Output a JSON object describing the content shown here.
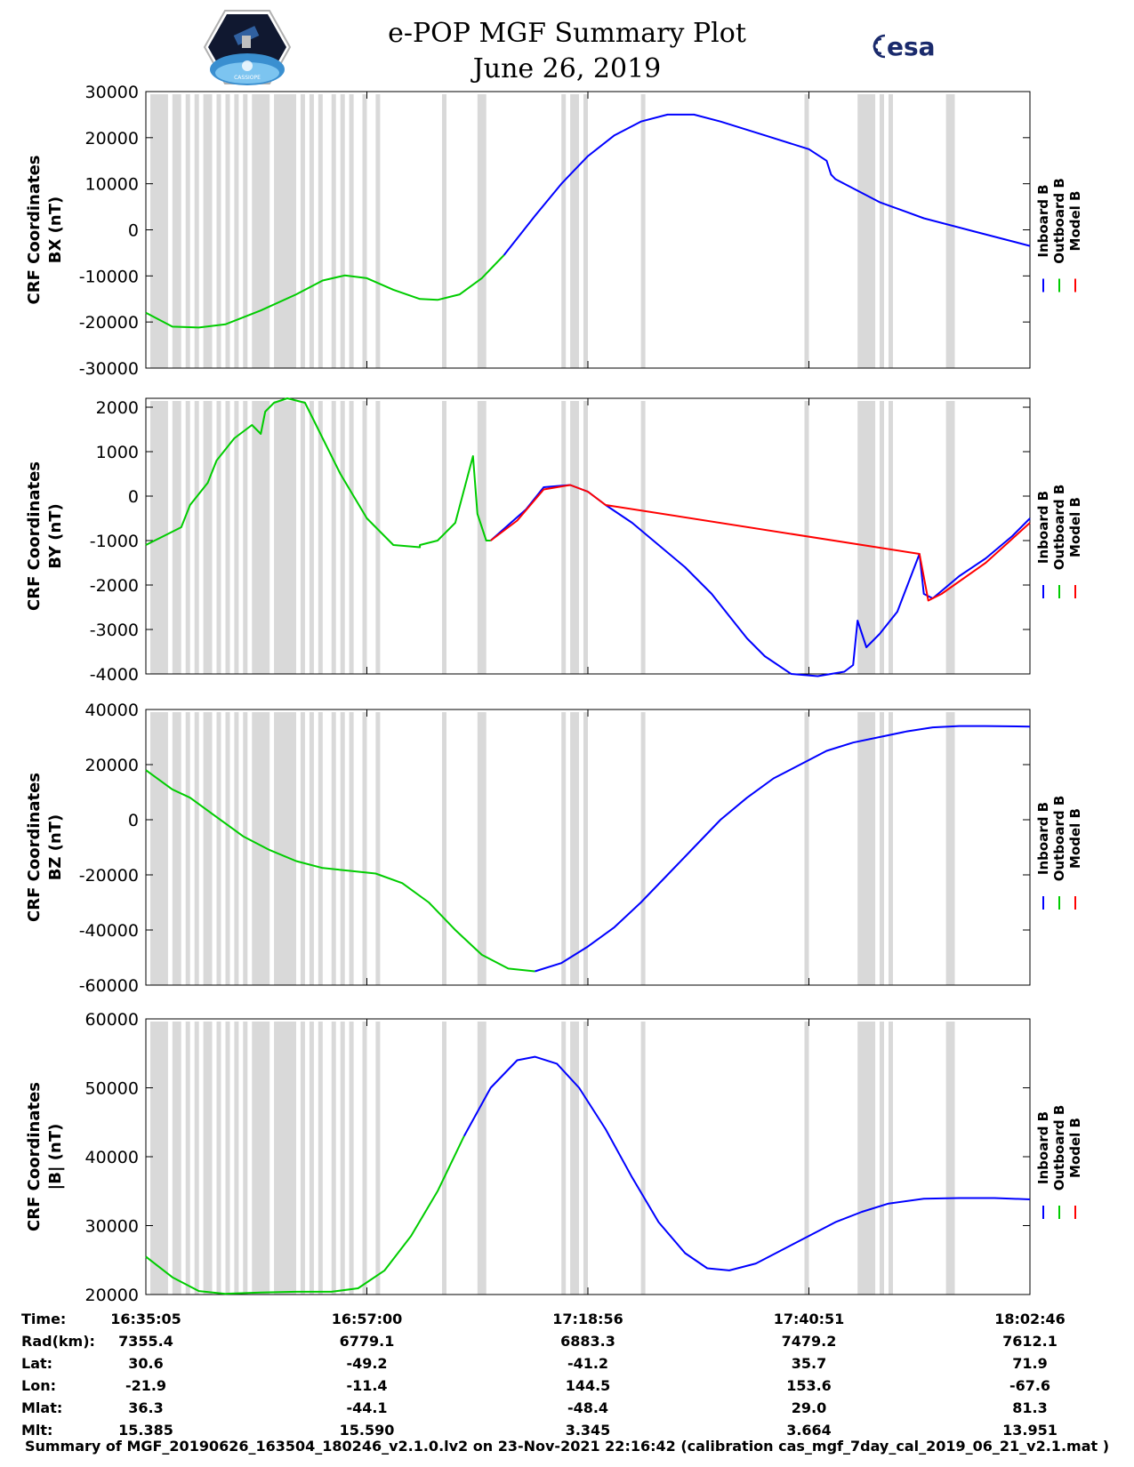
{
  "title_line1": "e-POP MGF Summary Plot",
  "title_line2": "June 26, 2019",
  "logo_esa_text": "esa",
  "logo_cassiope_text": "CASSIOPE",
  "colors": {
    "inboard": "#0000ff",
    "outboard": "#00cc00",
    "model": "#ff0000",
    "gap": "#d9d9d9"
  },
  "legend": [
    "Inboard B",
    "Outboard B",
    "Model B"
  ],
  "chart_data": [
    {
      "type": "line",
      "ylabel_line1": "CRF Coordinates",
      "ylabel_line2": "BX (nT)",
      "ylim": [
        -30000,
        30000
      ],
      "yticks": [
        "30000",
        "20000",
        "10000",
        "0",
        "-10000",
        "-20000",
        "-30000"
      ],
      "ytick_values": [
        30000,
        20000,
        10000,
        0,
        -10000,
        -20000,
        -30000
      ],
      "series": [
        {
          "name": "Outboard B",
          "x": [
            0,
            0.03,
            0.06,
            0.09,
            0.13,
            0.17,
            0.2,
            0.225,
            0.25,
            0.28,
            0.31,
            0.33,
            0.355,
            0.38,
            0.405
          ],
          "y": [
            -18000,
            -21000,
            -21200,
            -20500,
            -17500,
            -14000,
            -11000,
            -9900,
            -10500,
            -13000,
            -15000,
            -15200,
            -14000,
            -10500,
            -5500
          ]
        },
        {
          "name": "Inboard B",
          "x": [
            0.405,
            0.44,
            0.47,
            0.5,
            0.53,
            0.56,
            0.59,
            0.62,
            0.65,
            0.7,
            0.75,
            0.77,
            0.775,
            0.78,
            0.83,
            0.88,
            0.94,
            1.0
          ],
          "y": [
            -5500,
            3000,
            10000,
            16000,
            20500,
            23500,
            25000,
            25000,
            23500,
            20500,
            17500,
            15000,
            12000,
            11000,
            6000,
            2500,
            -500,
            -3500
          ]
        }
      ],
      "gap_bands": [
        [
          0.005,
          0.025
        ],
        [
          0.03,
          0.04
        ],
        [
          0.045,
          0.05
        ],
        [
          0.055,
          0.06
        ],
        [
          0.065,
          0.075
        ],
        [
          0.08,
          0.085
        ],
        [
          0.09,
          0.095
        ],
        [
          0.1,
          0.105
        ],
        [
          0.11,
          0.115
        ],
        [
          0.12,
          0.14
        ],
        [
          0.145,
          0.17
        ],
        [
          0.175,
          0.18
        ],
        [
          0.185,
          0.19
        ],
        [
          0.195,
          0.2
        ],
        [
          0.21,
          0.215
        ],
        [
          0.22,
          0.225
        ],
        [
          0.23,
          0.235
        ],
        [
          0.245,
          0.25
        ],
        [
          0.26,
          0.265
        ],
        [
          0.335,
          0.34
        ],
        [
          0.375,
          0.385
        ],
        [
          0.47,
          0.475
        ],
        [
          0.48,
          0.49
        ],
        [
          0.495,
          0.5
        ],
        [
          0.56,
          0.565
        ],
        [
          0.745,
          0.75
        ],
        [
          0.805,
          0.825
        ],
        [
          0.83,
          0.835
        ],
        [
          0.84,
          0.845
        ],
        [
          0.905,
          0.915
        ]
      ]
    },
    {
      "type": "line",
      "ylabel_line1": "CRF Coordinates",
      "ylabel_line2": "BY (nT)",
      "ylim": [
        -4000,
        2200
      ],
      "yticks": [
        "2000",
        "1000",
        "0",
        "-1000",
        "-2000",
        "-3000",
        "-4000"
      ],
      "ytick_values": [
        2000,
        1000,
        0,
        -1000,
        -2000,
        -3000,
        -4000
      ],
      "series": [
        {
          "name": "Outboard B",
          "x": [
            0,
            0.01,
            0.02,
            0.04,
            0.05,
            0.07,
            0.08,
            0.1,
            0.12,
            0.13,
            0.135,
            0.145,
            0.16,
            0.18,
            0.19,
            0.2,
            0.22,
            0.25,
            0.28,
            0.31,
            0.31,
            0.33,
            0.35,
            0.37,
            0.375,
            0.385,
            0.39
          ],
          "y": [
            -1100,
            -1000,
            -900,
            -700,
            -200,
            300,
            800,
            1300,
            1600,
            1400,
            1900,
            2100,
            2200,
            2100,
            1700,
            1300,
            500,
            -500,
            -1100,
            -1150,
            -1100,
            -1000,
            -600,
            900,
            -400,
            -1000,
            -1000
          ]
        },
        {
          "name": "Inboard B",
          "x": [
            0.39,
            0.41,
            0.43,
            0.45,
            0.48,
            0.5,
            0.52,
            0.55,
            0.58,
            0.61,
            0.64,
            0.66,
            0.68,
            0.7,
            0.73,
            0.76,
            0.79,
            0.8,
            0.805,
            0.815,
            0.83,
            0.85,
            0.875,
            0.88,
            0.89,
            0.92,
            0.95,
            0.98,
            1.0
          ],
          "y": [
            -1000,
            -650,
            -300,
            200,
            250,
            100,
            -200,
            -600,
            -1100,
            -1600,
            -2200,
            -2700,
            -3200,
            -3600,
            -4000,
            -4050,
            -3950,
            -3800,
            -2800,
            -3400,
            -3100,
            -2600,
            -1300,
            -2200,
            -2300,
            -1800,
            -1400,
            -900,
            -500
          ]
        },
        {
          "name": "Model B",
          "x": [
            0.39,
            0.42,
            0.45,
            0.48,
            0.5,
            0.52,
            0.875,
            0.885,
            0.9,
            0.95,
            1.0
          ],
          "y": [
            -1000,
            -550,
            150,
            250,
            100,
            -200,
            -1300,
            -2350,
            -2200,
            -1500,
            -600
          ]
        }
      ],
      "gap_bands": [
        [
          0.005,
          0.025
        ],
        [
          0.03,
          0.04
        ],
        [
          0.045,
          0.05
        ],
        [
          0.055,
          0.06
        ],
        [
          0.065,
          0.075
        ],
        [
          0.08,
          0.085
        ],
        [
          0.09,
          0.095
        ],
        [
          0.1,
          0.105
        ],
        [
          0.11,
          0.115
        ],
        [
          0.12,
          0.14
        ],
        [
          0.145,
          0.17
        ],
        [
          0.175,
          0.18
        ],
        [
          0.185,
          0.19
        ],
        [
          0.195,
          0.2
        ],
        [
          0.21,
          0.215
        ],
        [
          0.22,
          0.225
        ],
        [
          0.23,
          0.235
        ],
        [
          0.245,
          0.25
        ],
        [
          0.26,
          0.265
        ],
        [
          0.335,
          0.34
        ],
        [
          0.375,
          0.385
        ],
        [
          0.47,
          0.475
        ],
        [
          0.48,
          0.49
        ],
        [
          0.495,
          0.5
        ],
        [
          0.56,
          0.565
        ],
        [
          0.745,
          0.75
        ],
        [
          0.805,
          0.825
        ],
        [
          0.83,
          0.835
        ],
        [
          0.84,
          0.845
        ],
        [
          0.905,
          0.915
        ]
      ]
    },
    {
      "type": "line",
      "ylabel_line1": "CRF Coordinates",
      "ylabel_line2": "BZ (nT)",
      "ylim": [
        -60000,
        40000
      ],
      "yticks": [
        "40000",
        "20000",
        "0",
        "-20000",
        "-40000",
        "-60000"
      ],
      "ytick_values": [
        40000,
        20000,
        0,
        -20000,
        -40000,
        -60000
      ],
      "series": [
        {
          "name": "Outboard B",
          "x": [
            0,
            0.03,
            0.05,
            0.08,
            0.11,
            0.14,
            0.17,
            0.2,
            0.23,
            0.26,
            0.29,
            0.32,
            0.35,
            0.38,
            0.41,
            0.44
          ],
          "y": [
            18000,
            11000,
            8000,
            1000,
            -6000,
            -11000,
            -15000,
            -17500,
            -18500,
            -19500,
            -23000,
            -30000,
            -40000,
            -49000,
            -54000,
            -55000
          ]
        },
        {
          "name": "Inboard B",
          "x": [
            0.44,
            0.47,
            0.5,
            0.53,
            0.56,
            0.59,
            0.62,
            0.65,
            0.68,
            0.71,
            0.74,
            0.77,
            0.8,
            0.83,
            0.86,
            0.89,
            0.92,
            0.95,
            1.0
          ],
          "y": [
            -55000,
            -52000,
            -46000,
            -39000,
            -30000,
            -20000,
            -10000,
            0,
            8000,
            15000,
            20000,
            25000,
            28000,
            30000,
            32000,
            33500,
            34000,
            34000,
            33800
          ]
        }
      ],
      "gap_bands": [
        [
          0.005,
          0.025
        ],
        [
          0.03,
          0.04
        ],
        [
          0.045,
          0.05
        ],
        [
          0.055,
          0.06
        ],
        [
          0.065,
          0.075
        ],
        [
          0.08,
          0.085
        ],
        [
          0.09,
          0.095
        ],
        [
          0.1,
          0.105
        ],
        [
          0.11,
          0.115
        ],
        [
          0.12,
          0.14
        ],
        [
          0.145,
          0.17
        ],
        [
          0.175,
          0.18
        ],
        [
          0.185,
          0.19
        ],
        [
          0.195,
          0.2
        ],
        [
          0.21,
          0.215
        ],
        [
          0.22,
          0.225
        ],
        [
          0.23,
          0.235
        ],
        [
          0.245,
          0.25
        ],
        [
          0.26,
          0.265
        ],
        [
          0.335,
          0.34
        ],
        [
          0.375,
          0.385
        ],
        [
          0.47,
          0.475
        ],
        [
          0.48,
          0.49
        ],
        [
          0.495,
          0.5
        ],
        [
          0.56,
          0.565
        ],
        [
          0.745,
          0.75
        ],
        [
          0.805,
          0.825
        ],
        [
          0.83,
          0.835
        ],
        [
          0.84,
          0.845
        ],
        [
          0.905,
          0.915
        ]
      ]
    },
    {
      "type": "line",
      "ylabel_line1": "CRF Coordinates",
      "ylabel_line2": "|B| (nT)",
      "ylim": [
        20000,
        60000
      ],
      "yticks": [
        "60000",
        "50000",
        "40000",
        "30000",
        "20000"
      ],
      "ytick_values": [
        60000,
        50000,
        40000,
        30000,
        20000
      ],
      "series": [
        {
          "name": "Outboard B",
          "x": [
            0,
            0.03,
            0.06,
            0.09,
            0.13,
            0.17,
            0.21,
            0.24,
            0.27,
            0.3,
            0.33,
            0.36
          ],
          "y": [
            25500,
            22500,
            20500,
            20100,
            20300,
            20400,
            20400,
            20900,
            23500,
            28500,
            35000,
            43000
          ]
        },
        {
          "name": "Inboard B",
          "x": [
            0.36,
            0.39,
            0.42,
            0.44,
            0.465,
            0.49,
            0.52,
            0.55,
            0.58,
            0.61,
            0.635,
            0.66,
            0.69,
            0.72,
            0.75,
            0.78,
            0.81,
            0.84,
            0.88,
            0.92,
            0.96,
            1.0
          ],
          "y": [
            43000,
            50000,
            54000,
            54500,
            53500,
            50000,
            44000,
            37000,
            30500,
            26000,
            23800,
            23500,
            24500,
            26500,
            28500,
            30500,
            32000,
            33200,
            33900,
            34000,
            34000,
            33800
          ]
        }
      ],
      "gap_bands": [
        [
          0.005,
          0.025
        ],
        [
          0.03,
          0.04
        ],
        [
          0.045,
          0.05
        ],
        [
          0.055,
          0.06
        ],
        [
          0.065,
          0.075
        ],
        [
          0.08,
          0.085
        ],
        [
          0.09,
          0.095
        ],
        [
          0.1,
          0.105
        ],
        [
          0.11,
          0.115
        ],
        [
          0.12,
          0.14
        ],
        [
          0.145,
          0.17
        ],
        [
          0.175,
          0.18
        ],
        [
          0.185,
          0.19
        ],
        [
          0.195,
          0.2
        ],
        [
          0.21,
          0.215
        ],
        [
          0.22,
          0.225
        ],
        [
          0.23,
          0.235
        ],
        [
          0.245,
          0.25
        ],
        [
          0.26,
          0.265
        ],
        [
          0.335,
          0.34
        ],
        [
          0.375,
          0.385
        ],
        [
          0.47,
          0.475
        ],
        [
          0.48,
          0.49
        ],
        [
          0.495,
          0.5
        ],
        [
          0.56,
          0.565
        ],
        [
          0.745,
          0.75
        ],
        [
          0.805,
          0.825
        ],
        [
          0.83,
          0.835
        ],
        [
          0.84,
          0.845
        ],
        [
          0.905,
          0.915
        ]
      ]
    }
  ],
  "x_ticks": [
    0,
    0.25,
    0.5,
    0.75,
    1.0
  ],
  "info_table": {
    "row_labels": [
      "Time:",
      "Rad(km):",
      "Lat:",
      "Lon:",
      "Mlat:",
      "Mlt:"
    ],
    "columns": [
      [
        "16:35:05",
        "7355.4",
        "30.6",
        "-21.9",
        "36.3",
        "15.385"
      ],
      [
        "16:57:00",
        "6779.1",
        "-49.2",
        "-11.4",
        "-44.1",
        "15.590"
      ],
      [
        "17:18:56",
        "6883.3",
        "-41.2",
        "144.5",
        "-48.4",
        "3.345"
      ],
      [
        "17:40:51",
        "7479.2",
        "35.7",
        "153.6",
        "29.0",
        "3.664"
      ],
      [
        "18:02:46",
        "7612.1",
        "71.9",
        "-67.6",
        "81.3",
        "13.951"
      ]
    ]
  },
  "footer": "Summary of MGF_20190626_163504_180246_v2.1.0.lv2 on 23-Nov-2021 22:16:42 (calibration cas_mgf_7day_cal_2019_06_21_v2.1.mat )"
}
